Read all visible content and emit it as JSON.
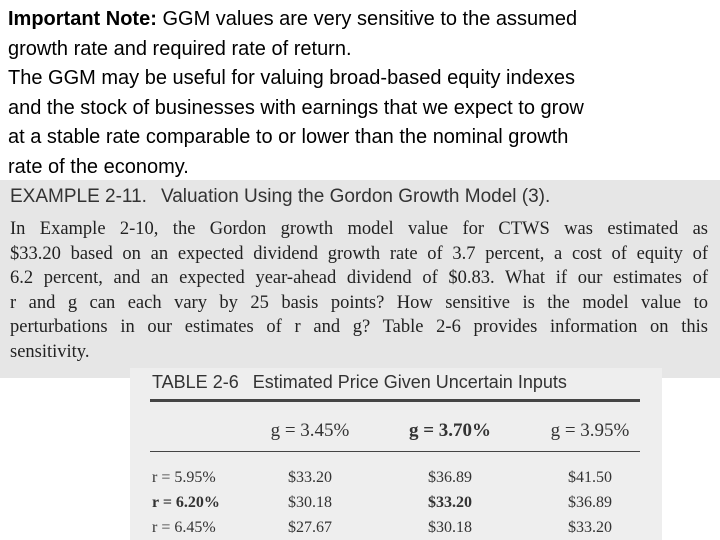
{
  "note": {
    "label": "Important Note:",
    "lines": [
      "GGM values are very sensitive to the assumed",
      "growth rate and required rate of return.",
      "The GGM may be useful for valuing broad-based equity indexes",
      "and the stock of businesses with earnings that we expect to grow",
      "at a stable rate comparable to or lower than the nominal growth",
      "rate of the economy."
    ]
  },
  "example": {
    "label": "EXAMPLE 2-11.",
    "title": "Valuation Using the Gordon Growth Model (3).",
    "lines": [
      "In Example 2-10, the Gordon growth model value for CTWS was estimated as",
      "$33.20 based on an expected dividend growth rate of 3.7 percent, a cost of equity of",
      "6.2 percent, and an expected year-ahead dividend of $0.83. What if our estimates of",
      "r and g can each vary by 25 basis points? How sensitive is the model value to",
      "perturbations in our estimates of r and g? Table 2-6 provides information on this",
      "sensitivity."
    ]
  },
  "table": {
    "label": "TABLE 2-6",
    "title": "Estimated Price Given Uncertain Inputs",
    "header": [
      "g = 3.45%",
      "g = 3.70%",
      "g = 3.95%"
    ],
    "rows": [
      [
        "r = 5.95%",
        "$33.20",
        "$36.89",
        "$41.50"
      ],
      [
        "r = 6.20%",
        "$30.18",
        "$33.20",
        "$36.89"
      ],
      [
        "r = 6.45%",
        "$27.67",
        "$30.18",
        "$33.20"
      ]
    ]
  }
}
